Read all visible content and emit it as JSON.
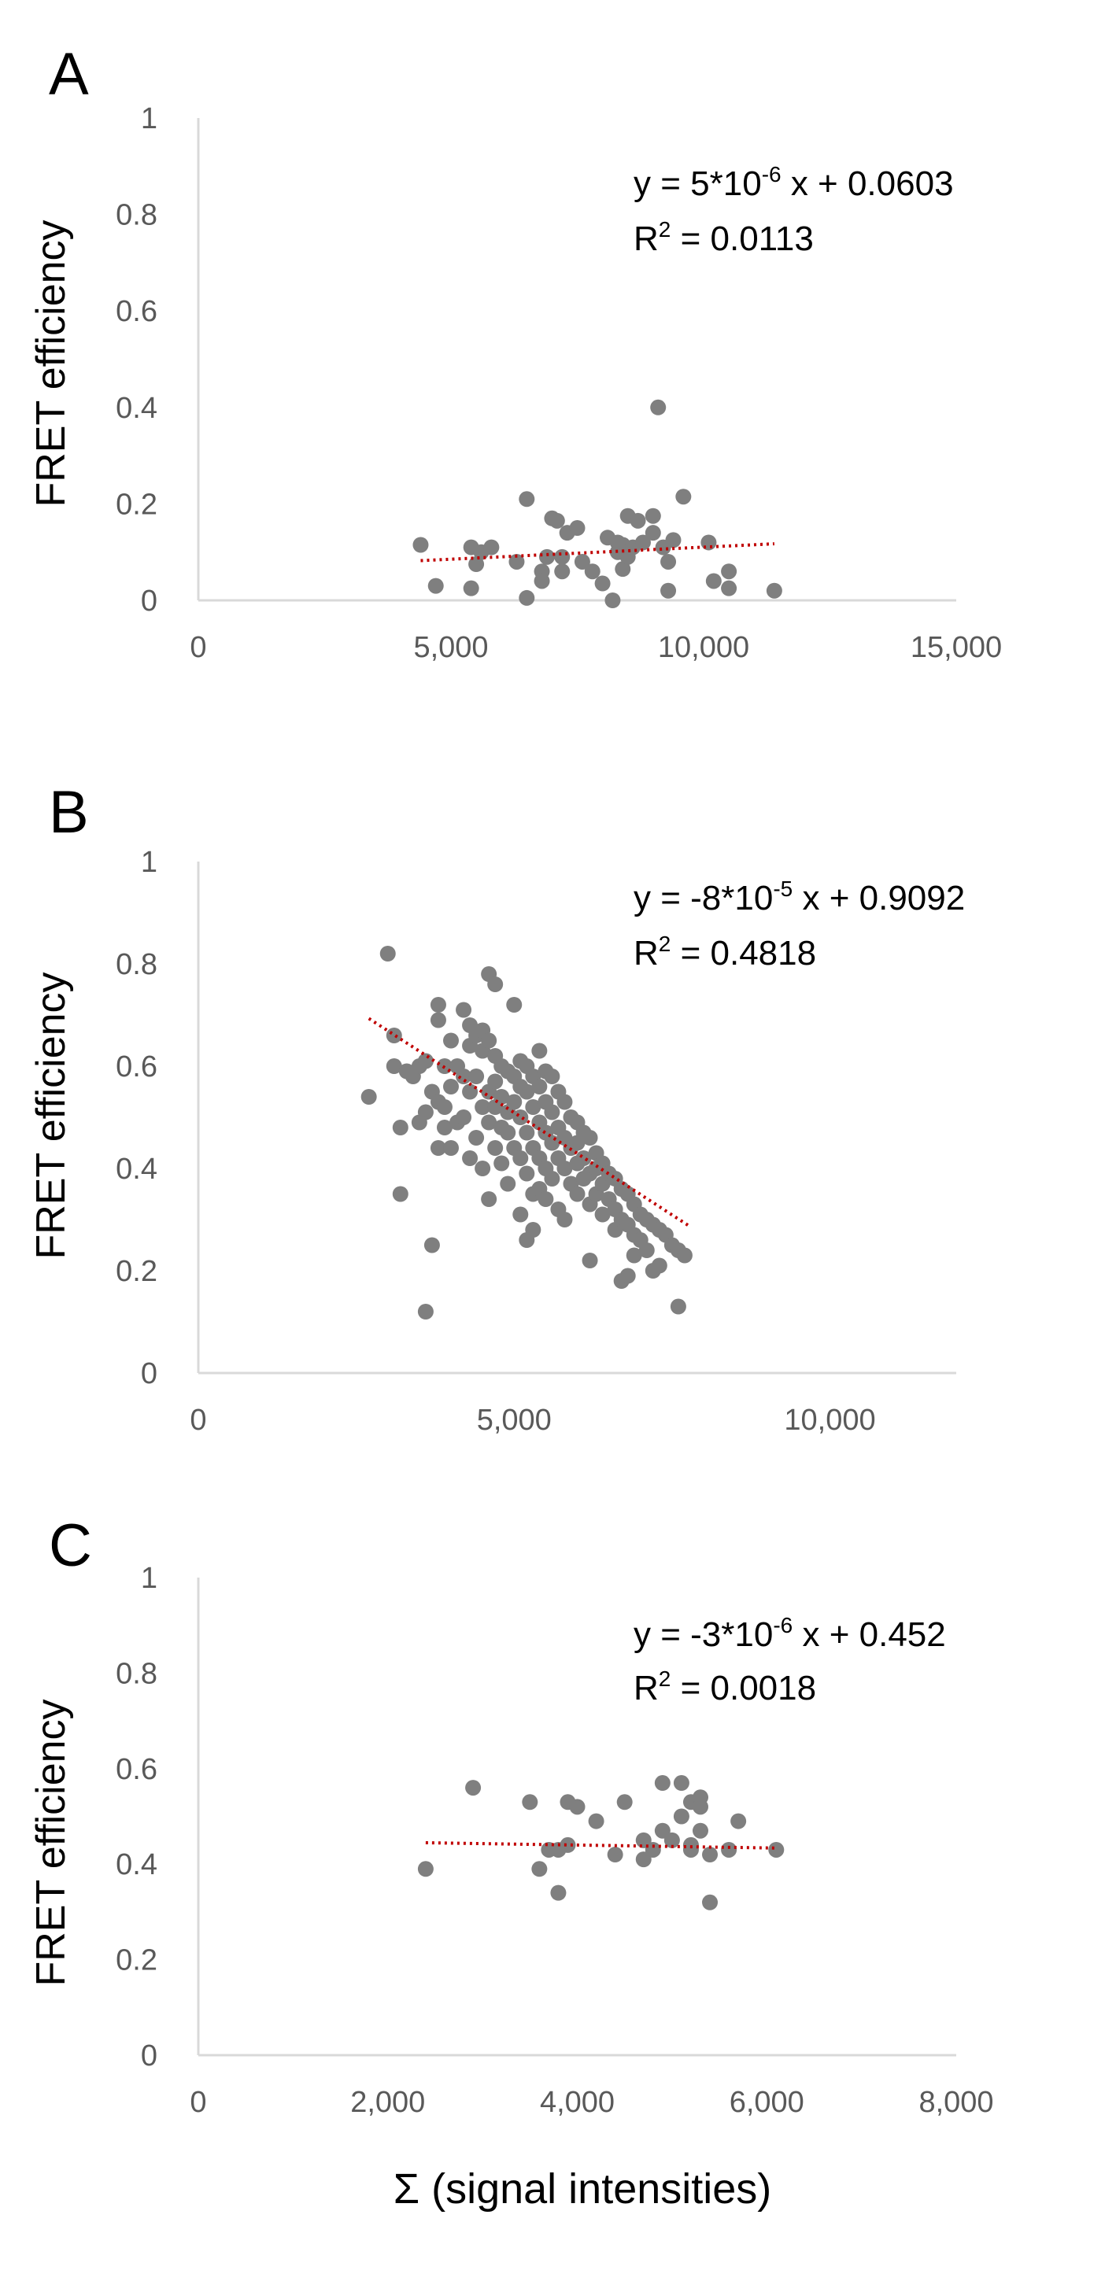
{
  "figure": {
    "xlabel": "Σ (signal intensities)",
    "point_color": "#7f7f7f",
    "trendline_color": "#c00000",
    "axis_color": "#d9d9d9"
  },
  "chart_data": [
    {
      "type": "scatter",
      "panel": "A",
      "ylabel": "FRET efficiency",
      "xlim": [
        0,
        15000
      ],
      "ylim": [
        0,
        1
      ],
      "xticks": [
        0,
        5000,
        10000,
        15000
      ],
      "yticks": [
        0,
        0.2,
        0.4,
        0.6,
        0.8,
        1
      ],
      "xtick_labels": [
        "0",
        "5,000",
        "10,000",
        "15,000"
      ],
      "ytick_labels": [
        "0",
        "0.2",
        "0.4",
        "0.6",
        "0.8",
        "1"
      ],
      "equation": {
        "lhs": "y = 5*10",
        "exp": "-6",
        "rhs": " x + 0.0603"
      },
      "r2": {
        "lhs": "R",
        "exp": "2",
        "rhs": " = 0.0113"
      },
      "trendline": {
        "slope": 5e-06,
        "intercept": 0.0603,
        "x_range": [
          4400,
          11400
        ]
      },
      "points": [
        [
          4400,
          0.115
        ],
        [
          4700,
          0.03
        ],
        [
          5400,
          0.11
        ],
        [
          5400,
          0.025
        ],
        [
          5500,
          0.075
        ],
        [
          5600,
          0.1
        ],
        [
          5800,
          0.11
        ],
        [
          6300,
          0.08
        ],
        [
          6500,
          0.21
        ],
        [
          6500,
          0.005
        ],
        [
          6800,
          0.06
        ],
        [
          6800,
          0.04
        ],
        [
          6900,
          0.09
        ],
        [
          7000,
          0.17
        ],
        [
          7100,
          0.165
        ],
        [
          7200,
          0.09
        ],
        [
          7200,
          0.06
        ],
        [
          7300,
          0.14
        ],
        [
          7500,
          0.15
        ],
        [
          7600,
          0.08
        ],
        [
          7800,
          0.06
        ],
        [
          8000,
          0.035
        ],
        [
          8100,
          0.13
        ],
        [
          8200,
          0.0
        ],
        [
          8300,
          0.12
        ],
        [
          8300,
          0.1
        ],
        [
          8400,
          0.115
        ],
        [
          8400,
          0.065
        ],
        [
          8500,
          0.175
        ],
        [
          8500,
          0.09
        ],
        [
          8600,
          0.11
        ],
        [
          8700,
          0.165
        ],
        [
          8800,
          0.12
        ],
        [
          9000,
          0.14
        ],
        [
          9000,
          0.175
        ],
        [
          9100,
          0.4
        ],
        [
          9200,
          0.11
        ],
        [
          9300,
          0.08
        ],
        [
          9300,
          0.02
        ],
        [
          9400,
          0.125
        ],
        [
          9600,
          0.215
        ],
        [
          10100,
          0.12
        ],
        [
          10200,
          0.04
        ],
        [
          10500,
          0.06
        ],
        [
          10500,
          0.025
        ],
        [
          11400,
          0.02
        ]
      ]
    },
    {
      "type": "scatter",
      "panel": "B",
      "ylabel": "FRET efficiency",
      "xlim": [
        0,
        12000
      ],
      "ylim": [
        0,
        1
      ],
      "xticks": [
        0,
        5000,
        10000
      ],
      "yticks": [
        0,
        0.2,
        0.4,
        0.6,
        0.8,
        1
      ],
      "xtick_labels": [
        "0",
        "5,000",
        "10,000"
      ],
      "ytick_labels": [
        "0",
        "0.2",
        "0.4",
        "0.6",
        "0.8",
        "1"
      ],
      "equation": {
        "lhs": "y = -8*10",
        "exp": "-5",
        "rhs": " x + 0.9092"
      },
      "r2": {
        "lhs": "R",
        "exp": "2",
        "rhs": " = 0.4818"
      },
      "trendline": {
        "slope": -8e-05,
        "intercept": 0.9092,
        "x_range": [
          2700,
          7800
        ]
      },
      "points": [
        [
          2700,
          0.54
        ],
        [
          3000,
          0.82
        ],
        [
          3100,
          0.66
        ],
        [
          3100,
          0.6
        ],
        [
          3200,
          0.48
        ],
        [
          3200,
          0.35
        ],
        [
          3300,
          0.59
        ],
        [
          3400,
          0.58
        ],
        [
          3500,
          0.6
        ],
        [
          3500,
          0.49
        ],
        [
          3600,
          0.12
        ],
        [
          3600,
          0.51
        ],
        [
          3600,
          0.61
        ],
        [
          3700,
          0.25
        ],
        [
          3700,
          0.55
        ],
        [
          3800,
          0.72
        ],
        [
          3800,
          0.69
        ],
        [
          3800,
          0.53
        ],
        [
          3800,
          0.44
        ],
        [
          3900,
          0.6
        ],
        [
          3900,
          0.52
        ],
        [
          3900,
          0.48
        ],
        [
          4000,
          0.65
        ],
        [
          4000,
          0.56
        ],
        [
          4000,
          0.44
        ],
        [
          4100,
          0.6
        ],
        [
          4100,
          0.49
        ],
        [
          4200,
          0.71
        ],
        [
          4200,
          0.58
        ],
        [
          4200,
          0.5
        ],
        [
          4300,
          0.68
        ],
        [
          4300,
          0.64
        ],
        [
          4300,
          0.55
        ],
        [
          4300,
          0.42
        ],
        [
          4400,
          0.66
        ],
        [
          4400,
          0.58
        ],
        [
          4400,
          0.46
        ],
        [
          4500,
          0.67
        ],
        [
          4500,
          0.63
        ],
        [
          4500,
          0.52
        ],
        [
          4500,
          0.4
        ],
        [
          4600,
          0.78
        ],
        [
          4600,
          0.65
        ],
        [
          4600,
          0.55
        ],
        [
          4600,
          0.49
        ],
        [
          4600,
          0.34
        ],
        [
          4700,
          0.76
        ],
        [
          4700,
          0.62
        ],
        [
          4700,
          0.57
        ],
        [
          4700,
          0.52
        ],
        [
          4700,
          0.44
        ],
        [
          4800,
          0.6
        ],
        [
          4800,
          0.54
        ],
        [
          4800,
          0.48
        ],
        [
          4800,
          0.41
        ],
        [
          4900,
          0.59
        ],
        [
          4900,
          0.51
        ],
        [
          4900,
          0.47
        ],
        [
          4900,
          0.37
        ],
        [
          5000,
          0.72
        ],
        [
          5000,
          0.58
        ],
        [
          5000,
          0.53
        ],
        [
          5000,
          0.44
        ],
        [
          5100,
          0.61
        ],
        [
          5100,
          0.56
        ],
        [
          5100,
          0.5
        ],
        [
          5100,
          0.42
        ],
        [
          5100,
          0.31
        ],
        [
          5200,
          0.6
        ],
        [
          5200,
          0.55
        ],
        [
          5200,
          0.47
        ],
        [
          5200,
          0.39
        ],
        [
          5200,
          0.26
        ],
        [
          5300,
          0.58
        ],
        [
          5300,
          0.52
        ],
        [
          5300,
          0.44
        ],
        [
          5300,
          0.35
        ],
        [
          5300,
          0.28
        ],
        [
          5400,
          0.63
        ],
        [
          5400,
          0.56
        ],
        [
          5400,
          0.49
        ],
        [
          5400,
          0.42
        ],
        [
          5400,
          0.36
        ],
        [
          5500,
          0.59
        ],
        [
          5500,
          0.53
        ],
        [
          5500,
          0.47
        ],
        [
          5500,
          0.4
        ],
        [
          5500,
          0.34
        ],
        [
          5600,
          0.58
        ],
        [
          5600,
          0.51
        ],
        [
          5600,
          0.45
        ],
        [
          5600,
          0.38
        ],
        [
          5700,
          0.55
        ],
        [
          5700,
          0.48
        ],
        [
          5700,
          0.42
        ],
        [
          5700,
          0.32
        ],
        [
          5800,
          0.53
        ],
        [
          5800,
          0.46
        ],
        [
          5800,
          0.4
        ],
        [
          5800,
          0.3
        ],
        [
          5900,
          0.5
        ],
        [
          5900,
          0.44
        ],
        [
          5900,
          0.37
        ],
        [
          6000,
          0.49
        ],
        [
          6000,
          0.45
        ],
        [
          6000,
          0.41
        ],
        [
          6000,
          0.35
        ],
        [
          6100,
          0.47
        ],
        [
          6100,
          0.42
        ],
        [
          6100,
          0.38
        ],
        [
          6200,
          0.46
        ],
        [
          6200,
          0.39
        ],
        [
          6200,
          0.33
        ],
        [
          6200,
          0.22
        ],
        [
          6300,
          0.43
        ],
        [
          6300,
          0.4
        ],
        [
          6300,
          0.35
        ],
        [
          6400,
          0.41
        ],
        [
          6400,
          0.37
        ],
        [
          6400,
          0.31
        ],
        [
          6500,
          0.39
        ],
        [
          6500,
          0.34
        ],
        [
          6600,
          0.38
        ],
        [
          6600,
          0.32
        ],
        [
          6600,
          0.28
        ],
        [
          6700,
          0.36
        ],
        [
          6700,
          0.3
        ],
        [
          6700,
          0.18
        ],
        [
          6800,
          0.35
        ],
        [
          6800,
          0.29
        ],
        [
          6800,
          0.19
        ],
        [
          6900,
          0.33
        ],
        [
          6900,
          0.27
        ],
        [
          6900,
          0.23
        ],
        [
          7000,
          0.31
        ],
        [
          7000,
          0.26
        ],
        [
          7100,
          0.3
        ],
        [
          7100,
          0.24
        ],
        [
          7200,
          0.29
        ],
        [
          7200,
          0.2
        ],
        [
          7300,
          0.28
        ],
        [
          7300,
          0.21
        ],
        [
          7400,
          0.27
        ],
        [
          7500,
          0.25
        ],
        [
          7600,
          0.24
        ],
        [
          7600,
          0.13
        ],
        [
          7700,
          0.23
        ]
      ]
    },
    {
      "type": "scatter",
      "panel": "C",
      "ylabel": "FRET efficiency",
      "xlim": [
        0,
        8000
      ],
      "ylim": [
        0,
        1
      ],
      "xticks": [
        0,
        2000,
        4000,
        6000,
        8000
      ],
      "yticks": [
        0,
        0.2,
        0.4,
        0.6,
        0.8,
        1
      ],
      "xtick_labels": [
        "0",
        "2,000",
        "4,000",
        "6,000",
        "8,000"
      ],
      "ytick_labels": [
        "0",
        "0.2",
        "0.4",
        "0.6",
        "0.8",
        "1"
      ],
      "equation": {
        "lhs": "y = -3*10",
        "exp": "-6",
        "rhs": " x + 0.452"
      },
      "r2": {
        "lhs": "R",
        "exp": "2",
        "rhs": " = 0.0018"
      },
      "trendline": {
        "slope": -3e-06,
        "intercept": 0.452,
        "x_range": [
          2400,
          6100
        ]
      },
      "points": [
        [
          2400,
          0.39
        ],
        [
          2900,
          0.56
        ],
        [
          3500,
          0.53
        ],
        [
          3600,
          0.39
        ],
        [
          3700,
          0.43
        ],
        [
          3800,
          0.34
        ],
        [
          3800,
          0.43
        ],
        [
          3900,
          0.44
        ],
        [
          3900,
          0.53
        ],
        [
          4000,
          0.52
        ],
        [
          4200,
          0.49
        ],
        [
          4400,
          0.42
        ],
        [
          4500,
          0.53
        ],
        [
          4700,
          0.45
        ],
        [
          4700,
          0.41
        ],
        [
          4800,
          0.43
        ],
        [
          4900,
          0.57
        ],
        [
          4900,
          0.47
        ],
        [
          5000,
          0.45
        ],
        [
          5100,
          0.57
        ],
        [
          5100,
          0.5
        ],
        [
          5200,
          0.44
        ],
        [
          5200,
          0.53
        ],
        [
          5200,
          0.43
        ],
        [
          5300,
          0.54
        ],
        [
          5300,
          0.47
        ],
        [
          5300,
          0.52
        ],
        [
          5400,
          0.32
        ],
        [
          5400,
          0.42
        ],
        [
          5600,
          0.43
        ],
        [
          5700,
          0.49
        ],
        [
          6100,
          0.43
        ]
      ]
    }
  ]
}
